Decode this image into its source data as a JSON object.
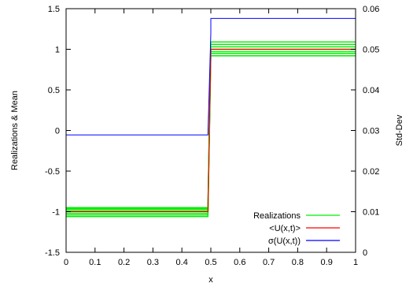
{
  "chart_data": {
    "type": "line",
    "xlabel": "x",
    "ylabel": "Realizations & Mean",
    "y2label": "Std-Dev",
    "xlim": [
      0,
      1
    ],
    "ylim": [
      -1.5,
      1.5
    ],
    "y2lim": [
      0,
      0.06
    ],
    "xticks": [
      "0",
      "0.1",
      "0.2",
      "0.3",
      "0.4",
      "0.5",
      "0.6",
      "0.7",
      "0.8",
      "0.9",
      "1"
    ],
    "yticks": [
      "-1.5",
      "-1",
      "-0.5",
      "0",
      "0.5",
      "1",
      "1.5"
    ],
    "y2ticks": [
      "0",
      "0.01",
      "0.02",
      "0.03",
      "0.04",
      "0.05",
      "0.06"
    ],
    "grid": false,
    "legend_position": "bottom-right",
    "series": [
      {
        "name": "Realizations",
        "color": "#00ee00",
        "axis": "left",
        "x": [
          0,
          0.49,
          0.5,
          1
        ],
        "lines": [
          [
            -1.06,
            -1.06,
            0.92,
            0.92
          ],
          [
            -1.04,
            -1.04,
            0.95,
            0.95
          ],
          [
            -1.02,
            -1.02,
            0.97,
            0.97
          ],
          [
            -0.99,
            -0.99,
            1.0,
            1.0
          ],
          [
            -0.97,
            -0.97,
            1.03,
            1.03
          ],
          [
            -0.96,
            -0.96,
            1.06,
            1.06
          ],
          [
            -0.95,
            -0.95,
            1.09,
            1.09
          ]
        ]
      },
      {
        "name": "<U(x,t)>",
        "color": "#ff0000",
        "axis": "left",
        "x": [
          0,
          0.49,
          0.5,
          1
        ],
        "y": [
          -1.0,
          -1.0,
          1.0,
          1.0
        ]
      },
      {
        "name": "σ(U(x,t))",
        "color": "#0000ff",
        "axis": "right",
        "x": [
          0,
          0.49,
          0.5,
          0.5,
          0.5,
          1
        ],
        "y": [
          0.0289,
          0.0289,
          0.054,
          0.054,
          0.0576,
          0.0576
        ]
      }
    ]
  }
}
